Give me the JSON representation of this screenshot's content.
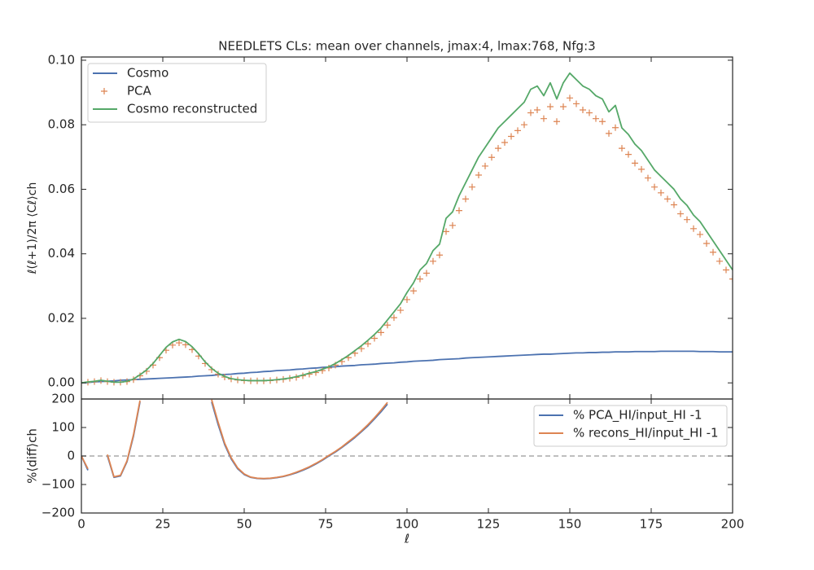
{
  "chart_data": [
    {
      "type": "line",
      "title": "NEEDLETS CLs: mean over channels, jmax:4, lmax:768, Nfg:3",
      "ylabel": "ℓ(ℓ+1)/2π ⟨Cℓ⟩ch",
      "xlim": [
        0,
        200
      ],
      "ylim": [
        -0.005,
        0.101
      ],
      "yticks": [
        {
          "value": 0,
          "label": "0.00"
        },
        {
          "value": 0.02,
          "label": "0.02"
        },
        {
          "value": 0.04,
          "label": "0.04"
        },
        {
          "value": 0.06,
          "label": "0.06"
        },
        {
          "value": 0.08,
          "label": "0.08"
        },
        {
          "value": 0.1,
          "label": "0.10"
        }
      ],
      "legend": "upper left",
      "x": [
        0,
        2,
        4,
        6,
        8,
        10,
        12,
        14,
        16,
        18,
        20,
        22,
        24,
        26,
        28,
        30,
        32,
        34,
        36,
        38,
        40,
        42,
        44,
        46,
        48,
        50,
        52,
        54,
        56,
        58,
        60,
        62,
        64,
        66,
        68,
        70,
        72,
        74,
        76,
        78,
        80,
        82,
        84,
        86,
        88,
        90,
        92,
        94,
        96,
        98,
        100,
        102,
        104,
        106,
        108,
        110,
        112,
        114,
        116,
        118,
        120,
        122,
        124,
        126,
        128,
        130,
        132,
        134,
        136,
        138,
        140,
        142,
        144,
        146,
        148,
        150,
        152,
        154,
        156,
        158,
        160,
        162,
        164,
        166,
        168,
        170,
        172,
        174,
        176,
        178,
        180,
        182,
        184,
        186,
        188,
        190,
        192,
        194,
        196,
        198,
        200
      ],
      "series": [
        {
          "name": "Cosmo",
          "color": "#4c72b0",
          "style": "line",
          "values": [
            0,
            0.0001,
            0.0003,
            0.0004,
            0.0005,
            0.0006,
            0.0008,
            0.0009,
            0.001,
            0.0011,
            0.0012,
            0.0013,
            0.0014,
            0.0015,
            0.0016,
            0.0017,
            0.0018,
            0.0019,
            0.0021,
            0.0022,
            0.0023,
            0.0025,
            0.0026,
            0.0027,
            0.0029,
            0.003,
            0.0032,
            0.0033,
            0.0035,
            0.0036,
            0.0038,
            0.0039,
            0.004,
            0.0042,
            0.0043,
            0.0045,
            0.0046,
            0.0048,
            0.0049,
            0.005,
            0.0052,
            0.0053,
            0.0054,
            0.0056,
            0.0057,
            0.0058,
            0.006,
            0.0061,
            0.0062,
            0.0064,
            0.0065,
            0.0067,
            0.0068,
            0.0069,
            0.007,
            0.0072,
            0.0073,
            0.0074,
            0.0075,
            0.0077,
            0.0078,
            0.0079,
            0.008,
            0.0081,
            0.0082,
            0.0083,
            0.0084,
            0.0085,
            0.0086,
            0.0087,
            0.0088,
            0.0089,
            0.0089,
            0.009,
            0.0091,
            0.0092,
            0.0093,
            0.0093,
            0.0094,
            0.0094,
            0.0095,
            0.0095,
            0.0096,
            0.0096,
            0.0096,
            0.0097,
            0.0097,
            0.0097,
            0.0097,
            0.0098,
            0.0098,
            0.0098,
            0.0098,
            0.0098,
            0.0098,
            0.0097,
            0.0097,
            0.0097,
            0.0096,
            0.0096,
            0.0096
          ]
        },
        {
          "name": "PCA",
          "color": "#dd8452",
          "style": "plus",
          "values": [
            0,
            0.0002,
            0.0004,
            0.0007,
            0.0004,
            0.0002,
            0.0002,
            0.0004,
            0.001,
            0.0022,
            0.0036,
            0.0055,
            0.0078,
            0.0101,
            0.0117,
            0.0124,
            0.0118,
            0.0103,
            0.0083,
            0.006,
            0.0041,
            0.0027,
            0.0018,
            0.0012,
            0.0009,
            0.0007,
            0.0006,
            0.0006,
            0.0006,
            0.0007,
            0.0009,
            0.0011,
            0.0014,
            0.0017,
            0.0022,
            0.0027,
            0.0032,
            0.0038,
            0.0046,
            0.0055,
            0.0066,
            0.0078,
            0.0092,
            0.0106,
            0.0121,
            0.0138,
            0.0156,
            0.0179,
            0.0202,
            0.0225,
            0.0258,
            0.0285,
            0.0322,
            0.034,
            0.0377,
            0.0396,
            0.0469,
            0.0488,
            0.0534,
            0.057,
            0.0607,
            0.0644,
            0.0672,
            0.0699,
            0.0727,
            0.0745,
            0.0764,
            0.0782,
            0.08,
            0.0837,
            0.0846,
            0.0819,
            0.0856,
            0.081,
            0.0856,
            0.0883,
            0.0865,
            0.0846,
            0.0837,
            0.0819,
            0.081,
            0.0773,
            0.0791,
            0.0727,
            0.0708,
            0.0681,
            0.0662,
            0.0635,
            0.0607,
            0.0589,
            0.057,
            0.0552,
            0.0524,
            0.0506,
            0.0478,
            0.046,
            0.0432,
            0.0405,
            0.0377,
            0.035,
            0.0322
          ]
        },
        {
          "name": "Cosmo reconstructed",
          "color": "#55a868",
          "style": "line",
          "values": [
            0,
            0.0003,
            0.0005,
            0.0008,
            0.0005,
            0.0002,
            0.0002,
            0.0005,
            0.0012,
            0.0025,
            0.004,
            0.006,
            0.0085,
            0.011,
            0.0127,
            0.0135,
            0.0128,
            0.0112,
            0.009,
            0.0065,
            0.0045,
            0.003,
            0.002,
            0.0013,
            0.001,
            0.0008,
            0.0007,
            0.0007,
            0.0007,
            0.0008,
            0.001,
            0.0012,
            0.0015,
            0.0019,
            0.0024,
            0.003,
            0.0035,
            0.0042,
            0.005,
            0.006,
            0.0072,
            0.0085,
            0.01,
            0.0115,
            0.0132,
            0.015,
            0.017,
            0.0195,
            0.022,
            0.0245,
            0.028,
            0.031,
            0.035,
            0.037,
            0.041,
            0.043,
            0.051,
            0.053,
            0.058,
            0.062,
            0.066,
            0.07,
            0.073,
            0.076,
            0.079,
            0.081,
            0.083,
            0.085,
            0.087,
            0.091,
            0.092,
            0.089,
            0.093,
            0.088,
            0.093,
            0.096,
            0.094,
            0.092,
            0.091,
            0.089,
            0.088,
            0.084,
            0.086,
            0.079,
            0.077,
            0.074,
            0.072,
            0.069,
            0.066,
            0.064,
            0.062,
            0.06,
            0.057,
            0.055,
            0.052,
            0.05,
            0.047,
            0.044,
            0.041,
            0.038,
            0.035
          ]
        }
      ]
    },
    {
      "type": "line",
      "xlabel": "ℓ",
      "ylabel": "%⟨diff⟩ch",
      "xlim": [
        0,
        200
      ],
      "ylim": [
        -200,
        200
      ],
      "xticks": [
        0,
        25,
        50,
        75,
        100,
        125,
        150,
        175,
        200
      ],
      "yticks": [
        {
          "value": -200,
          "label": "−200"
        },
        {
          "value": -100,
          "label": "−100"
        },
        0,
        100,
        200
      ],
      "reference_line": 0,
      "legend": "upper right",
      "x": [
        0,
        2,
        4,
        6,
        8,
        10,
        12,
        14,
        16,
        18,
        20,
        22,
        24,
        26,
        28,
        30,
        32,
        34,
        36,
        38,
        40,
        42,
        44,
        46,
        48,
        50,
        52,
        54,
        56,
        58,
        60,
        62,
        64,
        66,
        68,
        70,
        72,
        74,
        76,
        78,
        80,
        82,
        84,
        86,
        88,
        90,
        92,
        94
      ],
      "series": [
        {
          "name": "% PCA_HI/input_HI -1",
          "color": "#4c72b0",
          "values": [
            0,
            -50,
            null,
            null,
            0,
            -75,
            -70,
            -20,
            70,
            190,
            null,
            null,
            null,
            null,
            null,
            null,
            null,
            null,
            null,
            null,
            190,
            110,
            40,
            -10,
            -45,
            -65,
            -75,
            -79,
            -80,
            -79,
            -76,
            -72,
            -66,
            -59,
            -50,
            -40,
            -28,
            -15,
            0,
            14,
            30,
            47,
            65,
            85,
            106,
            130,
            155,
            182
          ]
        },
        {
          "name": "% recons_HI/input_HI -1",
          "color": "#dd8452",
          "values": [
            0,
            -45,
            null,
            null,
            5,
            -73,
            -68,
            -17,
            75,
            195,
            null,
            null,
            null,
            null,
            null,
            null,
            null,
            null,
            null,
            null,
            198,
            118,
            45,
            -6,
            -42,
            -63,
            -74,
            -78,
            -79,
            -78,
            -75,
            -71,
            -65,
            -57,
            -48,
            -38,
            -26,
            -13,
            2,
            16,
            32,
            50,
            68,
            88,
            110,
            134,
            160,
            188
          ]
        }
      ]
    }
  ]
}
